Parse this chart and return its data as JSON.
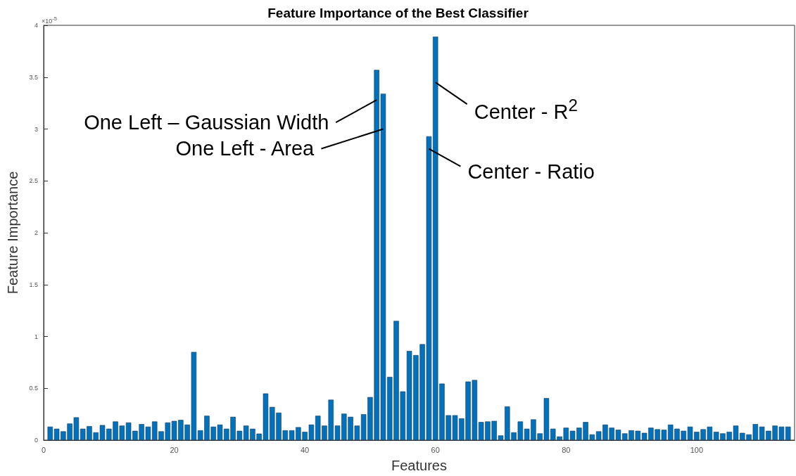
{
  "chart_data": {
    "type": "bar",
    "title": "Feature Importance of the Best Classifier",
    "xlabel": "Features",
    "ylabel": "Feature Importance",
    "x": [
      1,
      2,
      3,
      4,
      5,
      6,
      7,
      8,
      9,
      10,
      11,
      12,
      13,
      14,
      15,
      16,
      17,
      18,
      19,
      20,
      21,
      22,
      23,
      24,
      25,
      26,
      27,
      28,
      29,
      30,
      31,
      32,
      33,
      34,
      35,
      36,
      37,
      38,
      39,
      40,
      41,
      42,
      43,
      44,
      45,
      46,
      47,
      48,
      49,
      50,
      51,
      52,
      53,
      54,
      55,
      56,
      57,
      58,
      59,
      60,
      61,
      62,
      63,
      64,
      65,
      66,
      67,
      68,
      69,
      70,
      71,
      72,
      73,
      74,
      75,
      76,
      77,
      78,
      79,
      80,
      81,
      82,
      83,
      84,
      85,
      86,
      87,
      88,
      89,
      90,
      91,
      92,
      93,
      94,
      95,
      96,
      97,
      98,
      99,
      100,
      101,
      102,
      103,
      104,
      105,
      106,
      107,
      108,
      109,
      110,
      111,
      112,
      113,
      114
    ],
    "values": [
      0.13,
      0.11,
      0.085,
      0.16,
      0.22,
      0.11,
      0.135,
      0.075,
      0.145,
      0.11,
      0.18,
      0.14,
      0.17,
      0.09,
      0.155,
      0.13,
      0.18,
      0.085,
      0.17,
      0.185,
      0.195,
      0.15,
      0.85,
      0.095,
      0.235,
      0.13,
      0.15,
      0.11,
      0.225,
      0.09,
      0.14,
      0.11,
      0.063,
      0.45,
      0.32,
      0.265,
      0.095,
      0.095,
      0.125,
      0.08,
      0.15,
      0.235,
      0.14,
      0.39,
      0.14,
      0.255,
      0.225,
      0.14,
      0.25,
      0.415,
      3.57,
      3.34,
      0.61,
      1.15,
      0.47,
      0.86,
      0.82,
      0.925,
      2.93,
      3.89,
      0.545,
      0.24,
      0.24,
      0.21,
      0.565,
      0.58,
      0.175,
      0.18,
      0.185,
      0.045,
      0.325,
      0.075,
      0.18,
      0.11,
      0.2,
      0.065,
      0.405,
      0.11,
      0.035,
      0.12,
      0.09,
      0.12,
      0.175,
      0.055,
      0.085,
      0.15,
      0.12,
      0.1,
      0.065,
      0.095,
      0.09,
      0.07,
      0.12,
      0.105,
      0.1,
      0.15,
      0.11,
      0.09,
      0.13,
      0.08,
      0.105,
      0.13,
      0.08,
      0.065,
      0.08,
      0.14,
      0.07,
      0.055,
      0.155,
      0.13,
      0.09,
      0.14,
      0.13,
      0.13
    ],
    "color": "#0072bd",
    "xlim": [
      0,
      115
    ],
    "xticks": [
      0,
      20,
      40,
      60,
      80,
      100
    ],
    "ylim": [
      0,
      4
    ],
    "yticks": [
      0,
      0.5,
      1,
      1.5,
      2,
      2.5,
      3,
      3.5,
      4
    ],
    "grid": false,
    "annotations": [
      "×10$^{-5}$",
      {
        "text": "One Left – Gaussian Width",
        "x": 51,
        "y": 3.28
      },
      {
        "text": "One Left - Area",
        "x": 52,
        "y": 3.0
      },
      {
        "text": "Center - R$^{2}$",
        "x": 60,
        "y": 3.45
      },
      {
        "text": "Center - Ratio",
        "x": 59,
        "y": 2.81
      }
    ]
  }
}
